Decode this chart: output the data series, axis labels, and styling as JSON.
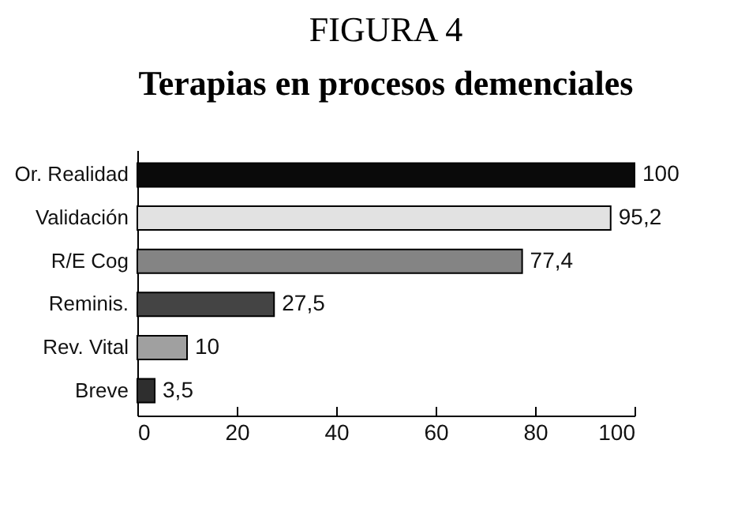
{
  "chart_data": {
    "type": "bar",
    "orientation": "horizontal",
    "title": "FIGURA 4",
    "subtitle": "Terapias en procesos demenciales",
    "categories": [
      "Or. Realidad",
      "Validación",
      "R/E Cog",
      "Reminis.",
      "Rev. Vital",
      "Breve"
    ],
    "values": [
      100,
      95.2,
      77.4,
      27.5,
      10,
      3.5
    ],
    "colors": [
      "#0a0a0a",
      "#e2e2e2",
      "#848484",
      "#444444",
      "#a0a0a0",
      "#2e2e2e"
    ],
    "value_labels": [
      "100",
      "95,2",
      "77,4",
      "27,5",
      "10",
      "3,5"
    ],
    "xlim": [
      0,
      100
    ],
    "xticks": [
      0,
      20,
      40,
      60,
      80,
      100
    ],
    "grid": false
  }
}
